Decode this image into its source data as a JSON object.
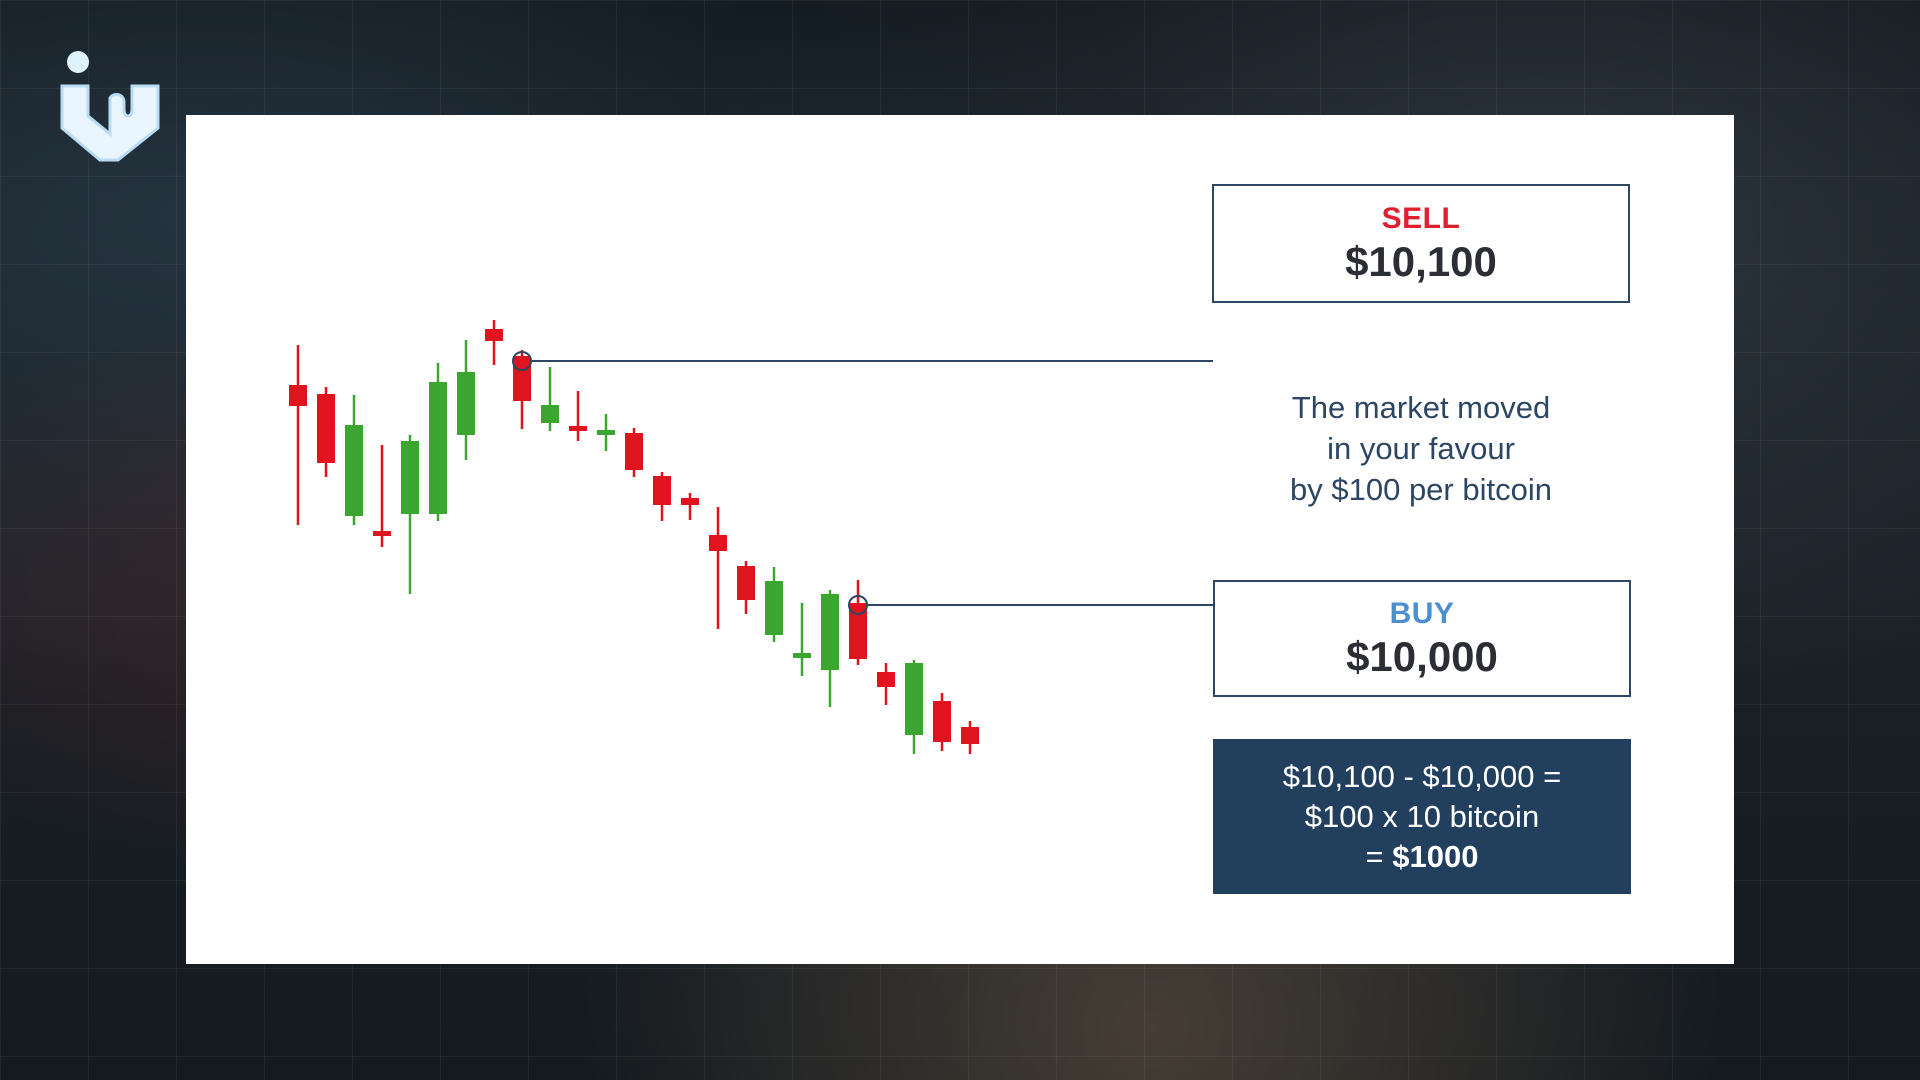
{
  "colors": {
    "bullish": "#3aa52f",
    "bearish": "#e0141e",
    "connector": "#2d4663",
    "sell_label": "#e0202e",
    "buy_label": "#4a8fd0",
    "calc_bg": "#233f5e"
  },
  "logo": {
    "icon": "brand-logo-icon"
  },
  "sell": {
    "label": "SELL",
    "price": "$10,100"
  },
  "buy": {
    "label": "BUY",
    "price": "$10,000"
  },
  "message": {
    "line1": "The market moved",
    "line2": "in your favour",
    "line3": "by $100 per bitcoin"
  },
  "calculation": {
    "line1": "$10,100 - $10,000 =",
    "line2": "$100 x 10 bitcoin",
    "line3_prefix": "= ",
    "line3_bold": "$1000"
  },
  "chart_data": {
    "type": "candlestick",
    "title": "",
    "xlabel": "",
    "ylabel": "",
    "axes_visible": false,
    "grid": false,
    "units": "relative price units (no axis printed)",
    "ylim": [
      0,
      720
    ],
    "candles": [
      {
        "o": 570,
        "c": 549,
        "h": 610,
        "l": 430
      },
      {
        "o": 561,
        "c": 492,
        "h": 568,
        "l": 478
      },
      {
        "o": 439,
        "c": 530,
        "h": 560,
        "l": 430
      },
      {
        "o": 424,
        "c": 419,
        "h": 510,
        "l": 408
      },
      {
        "o": 441,
        "c": 514,
        "h": 520,
        "l": 361
      },
      {
        "o": 441,
        "c": 573,
        "h": 592,
        "l": 434
      },
      {
        "o": 520,
        "c": 583,
        "h": 615,
        "l": 495
      },
      {
        "o": 626,
        "c": 614,
        "h": 635,
        "l": 590
      },
      {
        "o": 599,
        "c": 554,
        "h": 605,
        "l": 526
      },
      {
        "o": 532,
        "c": 550,
        "h": 588,
        "l": 524
      },
      {
        "o": 529,
        "c": 525,
        "h": 564,
        "l": 514
      },
      {
        "o": 522,
        "c": 525,
        "h": 541,
        "l": 504
      },
      {
        "o": 522,
        "c": 485,
        "h": 527,
        "l": 478
      },
      {
        "o": 479,
        "c": 450,
        "h": 483,
        "l": 434
      },
      {
        "o": 457,
        "c": 450,
        "h": 462,
        "l": 435
      },
      {
        "o": 420,
        "c": 404,
        "h": 448,
        "l": 326
      },
      {
        "o": 389,
        "c": 355,
        "h": 394,
        "l": 341
      },
      {
        "o": 320,
        "c": 374,
        "h": 388,
        "l": 313
      },
      {
        "o": 300,
        "c": 302,
        "h": 352,
        "l": 279
      },
      {
        "o": 285,
        "c": 361,
        "h": 365,
        "l": 248
      },
      {
        "o": 352,
        "c": 296,
        "h": 375,
        "l": 290
      },
      {
        "o": 283,
        "c": 268,
        "h": 292,
        "l": 250
      },
      {
        "o": 220,
        "c": 292,
        "h": 295,
        "l": 201
      },
      {
        "o": 254,
        "c": 213,
        "h": 262,
        "l": 204
      },
      {
        "o": 228,
        "c": 211,
        "h": 234,
        "l": 201
      }
    ],
    "markers": [
      {
        "candle": 8,
        "value": 594,
        "label": "SELL"
      },
      {
        "candle": 20,
        "value": 350,
        "label": "BUY"
      }
    ]
  }
}
